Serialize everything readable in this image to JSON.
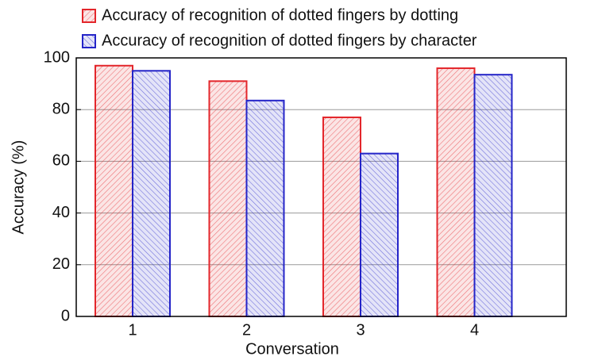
{
  "chart_data": {
    "type": "bar",
    "categories": [
      "1",
      "2",
      "3",
      "4"
    ],
    "series": [
      {
        "name": "Accuracy of recognition of dotted fingers by dotting",
        "color": "#e3262b",
        "values": [
          97,
          91,
          77,
          96
        ]
      },
      {
        "name": "Accuracy of recognition of dotted fingers by character",
        "color": "#2424c8",
        "values": [
          95,
          83.5,
          63,
          93.5
        ]
      }
    ],
    "x_label": "Conversation",
    "y_label": "Accuracy (%)",
    "ylim": [
      0,
      100
    ],
    "yticks": [
      0,
      20,
      40,
      60,
      80,
      100
    ],
    "grid": true
  }
}
